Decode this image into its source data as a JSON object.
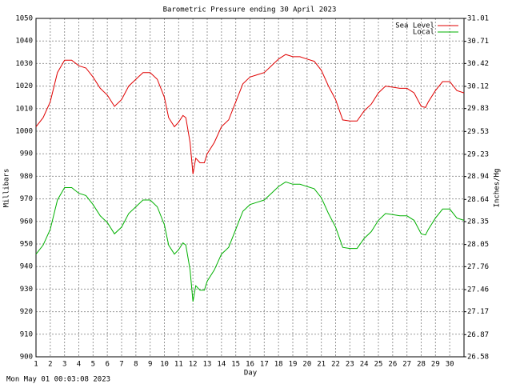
{
  "chart_data": {
    "type": "line",
    "title": "Barometric Pressure ending 30 April 2023",
    "x_label": "Day",
    "y_label": "Millibars",
    "y2_label": "Inches/Hg",
    "footer": "Mon May 01 00:03:08 2023",
    "legend": "top-right",
    "grid": true,
    "xlim": [
      1,
      31
    ],
    "xticks": [
      1,
      2,
      3,
      4,
      5,
      6,
      7,
      8,
      9,
      10,
      11,
      12,
      13,
      14,
      15,
      16,
      17,
      18,
      19,
      20,
      21,
      22,
      23,
      24,
      25,
      26,
      27,
      28,
      29,
      30
    ],
    "ylim": [
      900,
      1050
    ],
    "yticks": [
      900,
      910,
      920,
      930,
      940,
      950,
      960,
      970,
      980,
      990,
      1000,
      1010,
      1020,
      1030,
      1040,
      1050
    ],
    "y2lim": [
      26.58,
      31.01
    ],
    "y2ticks": [
      26.58,
      26.87,
      27.17,
      27.46,
      27.76,
      28.05,
      28.35,
      28.64,
      28.94,
      29.23,
      29.53,
      29.83,
      30.12,
      30.42,
      30.71,
      31.01
    ],
    "x": [
      1,
      1.5,
      2,
      2.5,
      3,
      3.5,
      4,
      4.5,
      5,
      5.5,
      6,
      6.5,
      7,
      7.5,
      8,
      8.5,
      9,
      9.5,
      10,
      10.3,
      10.7,
      11,
      11.3,
      11.5,
      11.8,
      12,
      12.2,
      12.5,
      12.8,
      13,
      13.5,
      14,
      14.5,
      15,
      15.5,
      16,
      16.5,
      17,
      17.5,
      18,
      18.5,
      19,
      19.5,
      20,
      20.5,
      21,
      21.5,
      22,
      22.5,
      23,
      23.5,
      24,
      24.5,
      25,
      25.5,
      26,
      26.5,
      27,
      27.5,
      28,
      28.3,
      28.5,
      29,
      29.5,
      30,
      30.5,
      31
    ],
    "series": [
      {
        "name": "Sea Level",
        "color": "#e00000",
        "values": [
          1002,
          1006,
          1013,
          1026,
          1031.5,
          1031.5,
          1029,
          1028,
          1024,
          1019,
          1016,
          1011,
          1014,
          1020,
          1023,
          1026,
          1026,
          1023,
          1015,
          1006,
          1002,
          1004,
          1007,
          1006,
          995,
          981,
          988,
          986,
          986,
          990,
          995,
          1002,
          1005,
          1013,
          1021,
          1024,
          1025,
          1026,
          1029,
          1032,
          1034,
          1033,
          1033,
          1032,
          1031,
          1027,
          1020,
          1014,
          1005,
          1004.5,
          1004.5,
          1009,
          1012,
          1017,
          1020,
          1019.5,
          1019,
          1019,
          1017,
          1011,
          1010.5,
          1013,
          1018,
          1022,
          1022,
          1018,
          1017
        ]
      },
      {
        "name": "Local",
        "color": "#00b000",
        "values": [
          945.5,
          949.5,
          956.5,
          969.5,
          975,
          975,
          972.5,
          971.5,
          967.5,
          962.5,
          959.5,
          954.5,
          957.5,
          963.5,
          966.5,
          969.5,
          969.5,
          966.5,
          958.5,
          949.5,
          945.5,
          947.5,
          950.5,
          949.5,
          938.5,
          924.5,
          931.5,
          929.5,
          929.5,
          933.5,
          938.5,
          945.5,
          948.5,
          956.5,
          964.5,
          967.5,
          968.5,
          969.5,
          972.5,
          975.5,
          977.5,
          976.5,
          976.5,
          975.5,
          974.5,
          970.5,
          963.5,
          957.5,
          948.5,
          948,
          948,
          952.5,
          955.5,
          960.5,
          963.5,
          963,
          962.5,
          962.5,
          960.5,
          954.5,
          954,
          956.5,
          961.5,
          965.5,
          965.5,
          961.5,
          960.5
        ]
      }
    ]
  }
}
